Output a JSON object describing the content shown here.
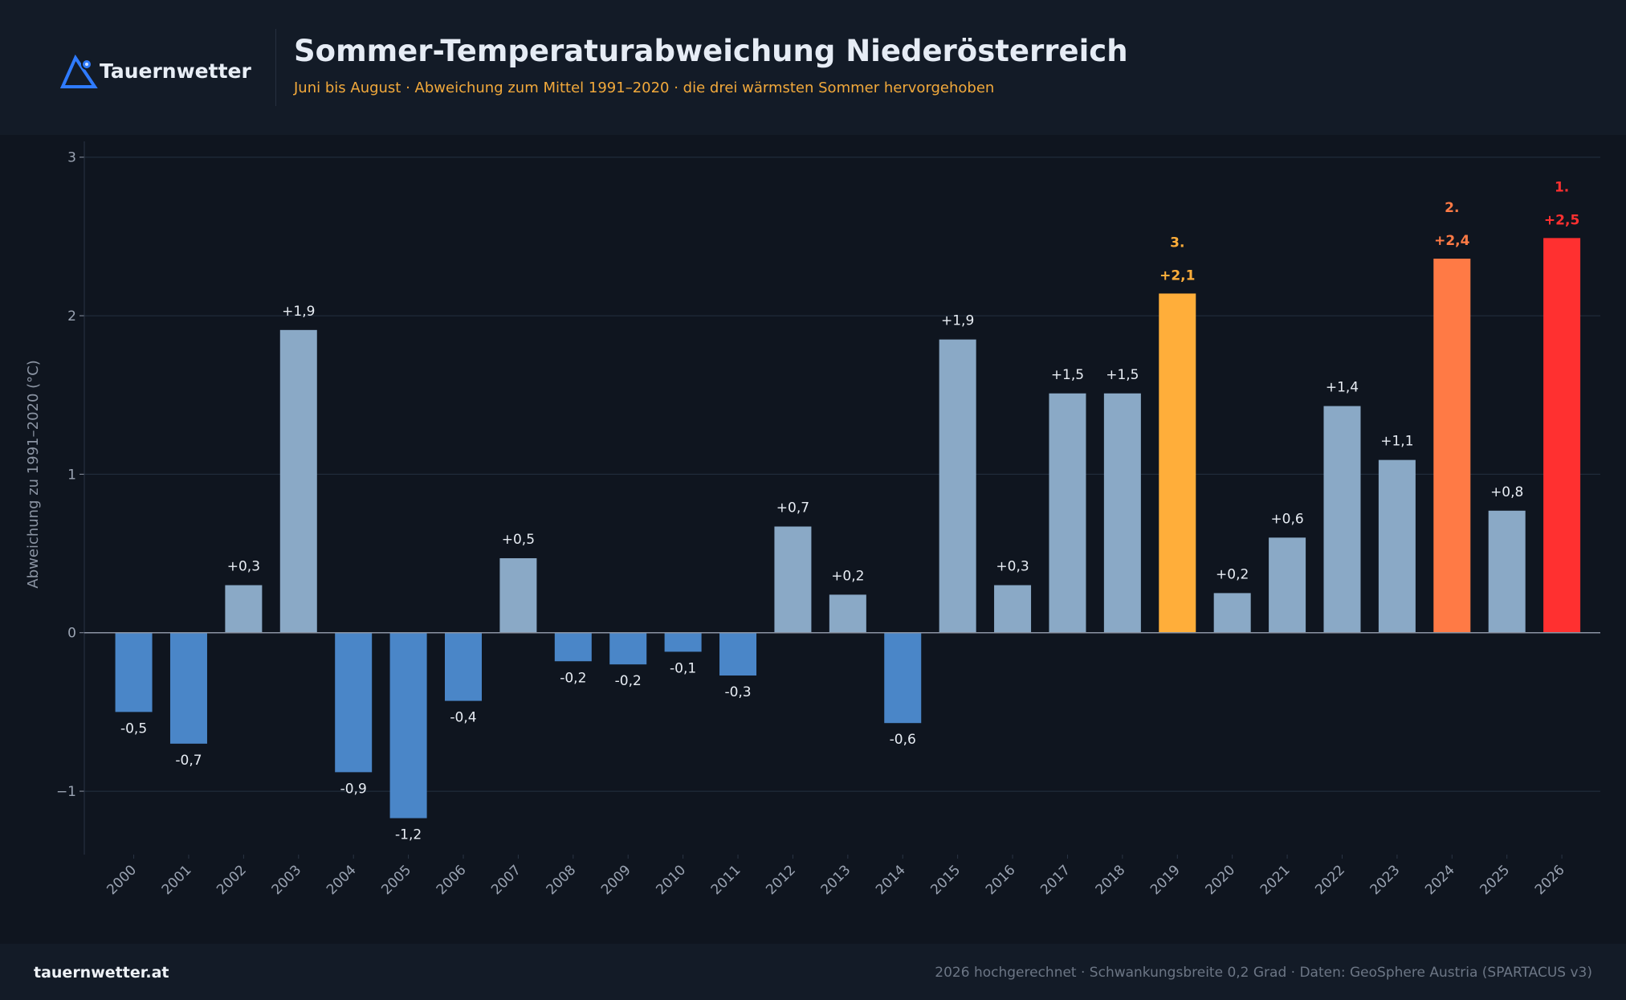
{
  "brand": "Tauernwetter",
  "title": "Sommer-Temperaturabweichung Niederösterreich",
  "subtitle": "Juni bis August · Abweichung zum Mittel 1991–2020 · die drei wärmsten Sommer hervorgehoben",
  "footer": {
    "site": "tauernwetter.at",
    "credit": "2026 hochgerechnet · Schwankungsbreite 0,2 Grad  ·  Daten: GeoSphere Austria (SPARTACUS v3)"
  },
  "colors": {
    "positive": "#8aa9c6",
    "negative": "#4a86c8",
    "rank3": "#ffae3a",
    "rank2": "#ff7a45",
    "rank1": "#ff3030",
    "grid": "#243040",
    "axis": "#8b94a3"
  },
  "chart_data": {
    "type": "bar",
    "ylabel": "Abweichung zu 1991–2020 (°C)",
    "xlabel": "",
    "ylim": [
      -1.4,
      3.1
    ],
    "yticks": [
      -1,
      0,
      1,
      2,
      3
    ],
    "ytick_labels": [
      "−1",
      "0",
      "1",
      "2",
      "3"
    ],
    "grid": true,
    "categories": [
      "2000",
      "2001",
      "2002",
      "2003",
      "2004",
      "2005",
      "2006",
      "2007",
      "2008",
      "2009",
      "2010",
      "2011",
      "2012",
      "2013",
      "2014",
      "2015",
      "2016",
      "2017",
      "2018",
      "2019",
      "2020",
      "2021",
      "2022",
      "2023",
      "2024",
      "2025",
      "2026"
    ],
    "values": [
      -0.5,
      -0.7,
      0.3,
      1.91,
      -0.88,
      -1.17,
      -0.43,
      0.47,
      -0.18,
      -0.2,
      -0.12,
      -0.27,
      0.67,
      0.24,
      -0.57,
      1.85,
      0.3,
      1.51,
      1.51,
      2.14,
      0.25,
      0.6,
      1.43,
      1.09,
      2.36,
      0.77,
      2.49
    ],
    "labels": [
      "-0,5",
      "-0,7",
      "+0,3",
      "+1,9",
      "-0,9",
      "-1,2",
      "-0,4",
      "+0,5",
      "-0,2",
      "-0,2",
      "-0,1",
      "-0,3",
      "+0,7",
      "+0,2",
      "-0,6",
      "+1,9",
      "+0,3",
      "+1,5",
      "+1,5",
      "+2,1",
      "+0,2",
      "+0,6",
      "+1,4",
      "+1,1",
      "+2,4",
      "+0,8",
      "+2,5"
    ],
    "highlights": [
      {
        "year": "2019",
        "rank": "3.",
        "color_key": "rank3"
      },
      {
        "year": "2024",
        "rank": "2.",
        "color_key": "rank2"
      },
      {
        "year": "2026",
        "rank": "1.",
        "color_key": "rank1"
      }
    ]
  }
}
